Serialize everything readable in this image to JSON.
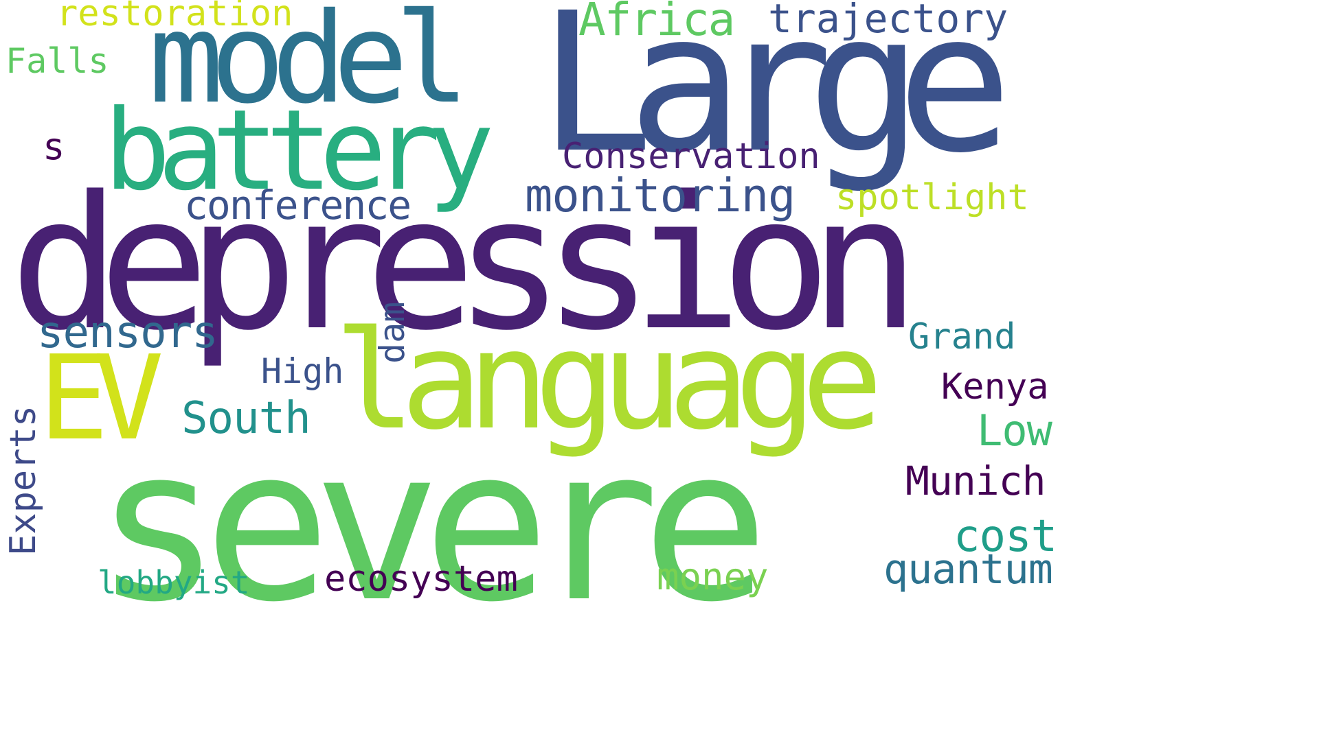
{
  "words": [
    {
      "text": "depression",
      "color": "#482173"
    },
    {
      "text": "severe",
      "color": "#5ec962"
    },
    {
      "text": "Large",
      "color": "#3b528b"
    },
    {
      "text": "language",
      "color": "#addc30"
    },
    {
      "text": "model",
      "color": "#2c728e"
    },
    {
      "text": "battery",
      "color": "#28ae80"
    },
    {
      "text": "EV",
      "color": "#d2e21b"
    },
    {
      "text": "monitoring",
      "color": "#3b528b"
    },
    {
      "text": "conference",
      "color": "#3b528b"
    },
    {
      "text": "Conservation",
      "color": "#482173"
    },
    {
      "text": "sensors",
      "color": "#31688e"
    },
    {
      "text": "South",
      "color": "#21918c"
    },
    {
      "text": "Africa",
      "color": "#5ec962"
    },
    {
      "text": "trajectory",
      "color": "#3b528b"
    },
    {
      "text": "restoration",
      "color": "#d2e21b"
    },
    {
      "text": "Falls",
      "color": "#5ec962"
    },
    {
      "text": "spotlight",
      "color": "#bddf26"
    },
    {
      "text": "Grand",
      "color": "#26828e"
    },
    {
      "text": "Kenya",
      "color": "#440154"
    },
    {
      "text": "Low",
      "color": "#3fbc73"
    },
    {
      "text": "Munich",
      "color": "#440154"
    },
    {
      "text": "cost",
      "color": "#1f9e89"
    },
    {
      "text": "quantum",
      "color": "#2c728e"
    },
    {
      "text": "money",
      "color": "#7ad151"
    },
    {
      "text": "ecosystem",
      "color": "#440154"
    },
    {
      "text": "lobbyist",
      "color": "#22a884"
    },
    {
      "text": "High",
      "color": "#3b528b"
    },
    {
      "text": "dam",
      "color": "#3b528b"
    },
    {
      "text": "Experts",
      "color": "#3e4a89"
    },
    {
      "text": "s",
      "color": "#440154"
    }
  ]
}
